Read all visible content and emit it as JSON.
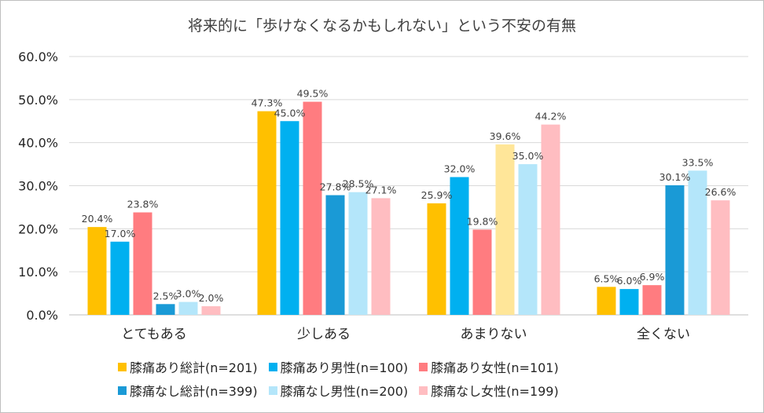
{
  "chart_data": {
    "type": "bar",
    "title": "将来的に「歩けなくなるかもしれない」という不安の有無",
    "categories": [
      "とてもある",
      "少しある",
      "あまりない",
      "全くない"
    ],
    "ylim": [
      0,
      60
    ],
    "yticks": [
      "0.0%",
      "10.0%",
      "20.0%",
      "30.0%",
      "40.0%",
      "50.0%",
      "60.0%"
    ],
    "grid": true,
    "legend_position": "bottom",
    "series": [
      {
        "name": "膝痛あり総計(n=201)",
        "color": "#FFC000",
        "values": [
          20.4,
          47.3,
          25.9,
          6.5
        ],
        "labels": [
          "20.4%",
          "47.3%",
          "25.9%",
          "6.5%"
        ]
      },
      {
        "name": "膝痛あり男性(n=100)",
        "color": "#00B0F0",
        "values": [
          17.0,
          45.0,
          32.0,
          6.0
        ],
        "labels": [
          "17.0%",
          "45.0%",
          "32.0%",
          "6.0%"
        ]
      },
      {
        "name": "膝痛あり女性(n=101)",
        "color": "#FF7C80",
        "values": [
          23.8,
          49.5,
          19.8,
          6.9
        ],
        "labels": [
          "23.8%",
          "49.5%",
          "19.8%",
          "6.9%"
        ]
      },
      {
        "name": "膝痛なし総計(n=399)",
        "color": "#1A9AD6",
        "values": [
          2.5,
          27.8,
          39.6,
          30.1
        ],
        "labels": [
          "2.5%",
          "27.8%",
          "39.6%",
          "30.1%"
        ]
      },
      {
        "name": "膝痛なし男性(n=200)",
        "color": "#B4E6FA",
        "values": [
          3.0,
          28.5,
          35.0,
          33.5
        ],
        "labels": [
          "3.0%",
          "28.5%",
          "35.0%",
          "33.5%"
        ]
      },
      {
        "name": "膝痛なし女性(n=199)",
        "color": "#FFBDC1",
        "values": [
          2.0,
          27.1,
          44.2,
          26.6
        ],
        "labels": [
          "2.0%",
          "27.1%",
          "44.2%",
          "26.6%"
        ]
      }
    ],
    "bar_overrides": {
      "2-3": "#FFE699"
    }
  }
}
